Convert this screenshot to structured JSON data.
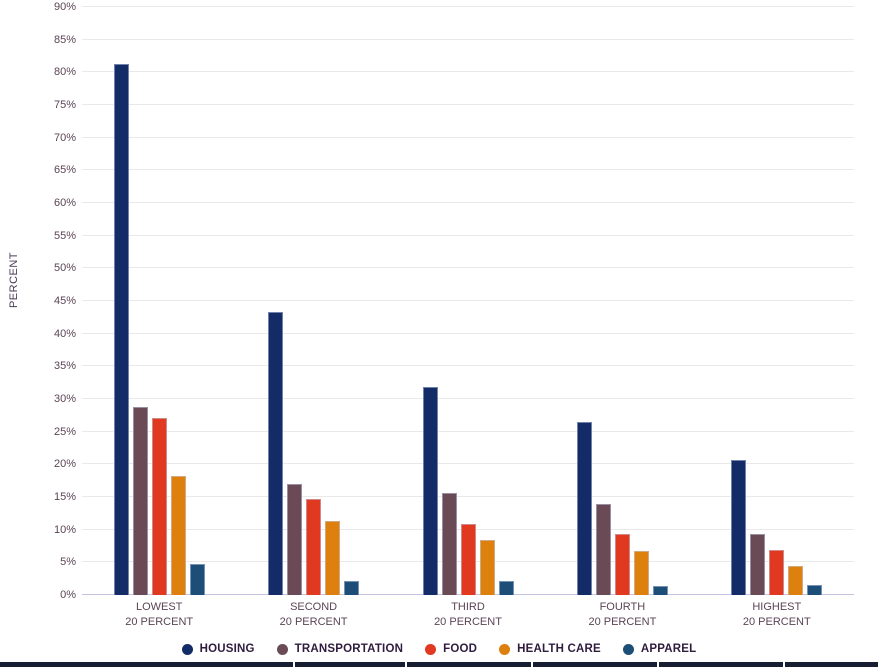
{
  "chart_data": {
    "type": "bar",
    "title": "",
    "xlabel": "",
    "ylabel": "PERCENT",
    "ylim": [
      0,
      90
    ],
    "ytick_step": 5,
    "ytick_suffix": "%",
    "grid": true,
    "legend_position": "bottom",
    "categories": [
      {
        "line1": "LOWEST",
        "line2": "20 PERCENT"
      },
      {
        "line1": "SECOND",
        "line2": "20 PERCENT"
      },
      {
        "line1": "THIRD",
        "line2": "20 PERCENT"
      },
      {
        "line1": "FOURTH",
        "line2": "20 PERCENT"
      },
      {
        "line1": "HIGHEST",
        "line2": "20 PERCENT"
      }
    ],
    "series": [
      {
        "name": "HOUSING",
        "color": "#132b66",
        "values": [
          81.3,
          43.3,
          31.9,
          26.5,
          20.6
        ]
      },
      {
        "name": "TRANSPORTATION",
        "color": "#6a4b55",
        "values": [
          28.8,
          17.0,
          15.6,
          13.9,
          9.4
        ]
      },
      {
        "name": "FOOD",
        "color": "#e13920",
        "values": [
          27.1,
          14.7,
          10.9,
          9.4,
          6.9
        ]
      },
      {
        "name": "HEALTH CARE",
        "color": "#dd800d",
        "values": [
          18.2,
          11.3,
          8.4,
          6.8,
          4.4
        ]
      },
      {
        "name": "APPAREL",
        "color": "#1c4e77",
        "values": [
          4.8,
          2.2,
          2.1,
          1.4,
          1.5
        ]
      }
    ]
  },
  "colors": {
    "gridline": "#e9e9e9",
    "axis_line": "#c6c3e0",
    "tick_text": "#5b4454",
    "category_text": "#5b4454",
    "ylabel_text": "#473a56",
    "legend_text": "#2f1c3f",
    "bottom_strip": "#191f33"
  }
}
